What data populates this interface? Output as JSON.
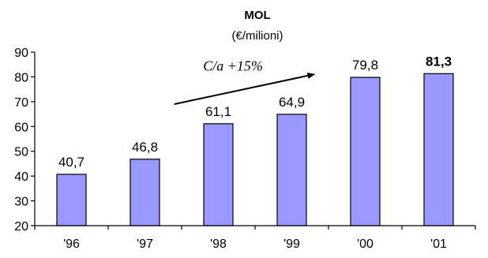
{
  "chart_data": {
    "type": "bar",
    "title": "MOL",
    "subtitle": "(€/milioni)",
    "categories": [
      "'96",
      "'97",
      "'98",
      "'99",
      "'00",
      "'01"
    ],
    "values": [
      40.7,
      46.8,
      61.1,
      64.9,
      79.8,
      81.3
    ],
    "value_labels": [
      "40,7",
      "46,8",
      "61,1",
      "64,9",
      "79,8",
      "81,3"
    ],
    "highlighted_label_index": 5,
    "ylim": [
      20,
      90
    ],
    "yticks": [
      20,
      30,
      40,
      50,
      60,
      70,
      80,
      90
    ],
    "grid": false,
    "legend": "none",
    "bar_color": "#9999ff",
    "annotation": {
      "text": "C/a +15%",
      "arrow_from": {
        "category_index": 1.4,
        "value": 69
      },
      "arrow_to": {
        "category_index": 3.3,
        "value": 81
      }
    }
  }
}
